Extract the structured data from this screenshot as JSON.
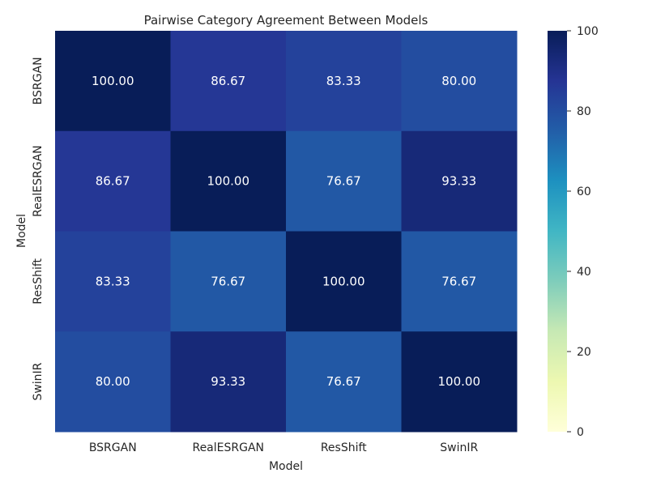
{
  "chart_data": {
    "type": "heatmap",
    "title": "Pairwise Category Agreement Between Models",
    "xlabel": "Model",
    "ylabel": "Model",
    "x_categories": [
      "BSRGAN",
      "RealESRGAN",
      "ResShift",
      "SwinIR"
    ],
    "y_categories": [
      "BSRGAN",
      "RealESRGAN",
      "ResShift",
      "SwinIR"
    ],
    "values": [
      [
        100.0,
        86.67,
        83.33,
        80.0
      ],
      [
        86.67,
        100.0,
        76.67,
        93.33
      ],
      [
        83.33,
        76.67,
        100.0,
        76.67
      ],
      [
        80.0,
        93.33,
        76.67,
        100.0
      ]
    ],
    "value_format": "0.00",
    "colormap": "YlGnBu",
    "colorbar": {
      "range": [
        0,
        100
      ],
      "ticks": [
        0,
        20,
        40,
        60,
        80,
        100
      ]
    },
    "grid": false
  }
}
